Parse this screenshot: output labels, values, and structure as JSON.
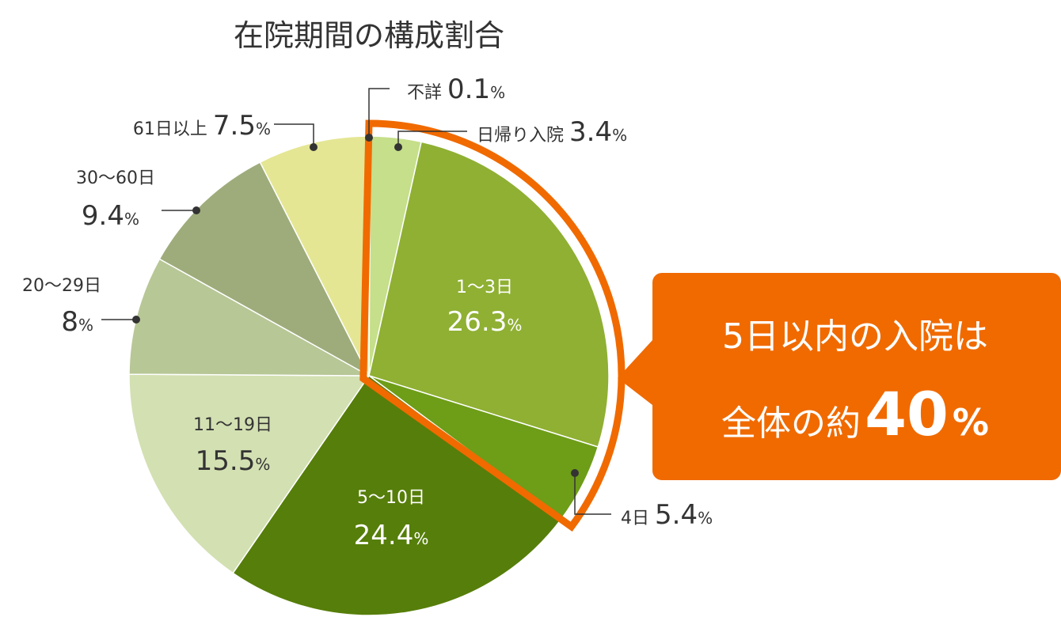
{
  "chart_data": {
    "type": "pie",
    "title": "在院期間の構成割合",
    "unit": "%",
    "slices": [
      {
        "label": "不詳",
        "value": 0.1,
        "color": "#c5df9c"
      },
      {
        "label": "日帰り入院",
        "value": 3.4,
        "color": "#c5df8a"
      },
      {
        "label": "1〜3日",
        "value": 26.3,
        "color": "#8fb033"
      },
      {
        "label": "4日",
        "value": 5.4,
        "color": "#6e9d18"
      },
      {
        "label": "5〜10日",
        "value": 24.4,
        "color": "#567e0a"
      },
      {
        "label": "11〜19日",
        "value": 15.5,
        "color": "#d3e0b2"
      },
      {
        "label": "20〜29日",
        "value": 8.0,
        "color": "#b7c796"
      },
      {
        "label": "30〜60日",
        "value": 9.4,
        "color": "#9eac7b"
      },
      {
        "label": "61日以上",
        "value": 7.5,
        "color": "#e4e694"
      }
    ],
    "highlight": {
      "slices": [
        "不詳",
        "日帰り入院",
        "1〜3日",
        "4日"
      ],
      "color": "#f06a00"
    },
    "callout": {
      "line1": "5日以内の入院は",
      "line2_prefix": "全体の約",
      "line2_number": "40",
      "line2_unit": "%",
      "color": "#f06a00"
    }
  }
}
